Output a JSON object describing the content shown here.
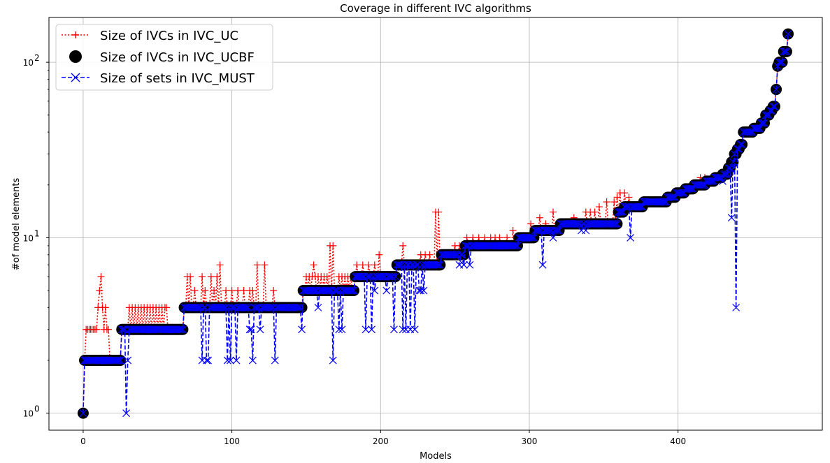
{
  "chart_data": {
    "type": "line",
    "title": "Coverage in different IVC algorithms",
    "xlabel": "Models",
    "ylabel": "#of model elements",
    "xlim": [
      -23,
      497
    ],
    "ylim": [
      0.8,
      180
    ],
    "yscale": "log",
    "grid": true,
    "legend_position": "top-left",
    "x_ticks": [
      0,
      100,
      200,
      300,
      400
    ],
    "y_ticks": [
      {
        "value": 1,
        "base": "10",
        "exp": "0"
      },
      {
        "value": 10,
        "base": "10",
        "exp": "1"
      },
      {
        "value": 100,
        "base": "10",
        "exp": "2"
      }
    ],
    "n_models": 475,
    "ucbf_steps": [
      [
        0,
        0,
        1
      ],
      [
        1,
        25,
        2
      ],
      [
        26,
        67,
        3
      ],
      [
        68,
        147,
        4
      ],
      [
        148,
        182,
        5
      ],
      [
        183,
        210,
        6
      ],
      [
        211,
        240,
        7
      ],
      [
        241,
        256,
        8
      ],
      [
        257,
        292,
        9
      ],
      [
        293,
        303,
        10
      ],
      [
        304,
        320,
        11
      ],
      [
        321,
        359,
        12
      ],
      [
        360,
        363,
        14
      ],
      [
        364,
        376,
        15
      ],
      [
        377,
        392,
        16
      ],
      [
        393,
        398,
        17
      ],
      [
        399,
        404,
        18
      ],
      [
        405,
        410,
        19
      ],
      [
        411,
        418,
        20
      ],
      [
        419,
        424,
        21
      ],
      [
        425,
        429,
        22
      ],
      [
        430,
        433,
        23
      ],
      [
        434,
        435,
        25
      ],
      [
        436,
        437,
        27
      ],
      [
        438,
        439,
        30
      ],
      [
        440,
        441,
        32
      ],
      [
        442,
        443,
        34
      ],
      [
        444,
        450,
        40
      ],
      [
        451,
        455,
        42
      ],
      [
        456,
        458,
        45
      ],
      [
        459,
        461,
        50
      ],
      [
        462,
        463,
        53
      ],
      [
        464,
        465,
        56
      ],
      [
        466,
        466,
        70
      ],
      [
        467,
        467,
        95
      ],
      [
        468,
        470,
        100
      ],
      [
        471,
        473,
        115
      ],
      [
        474,
        474,
        145
      ]
    ],
    "uc_overrides": [
      [
        2,
        3
      ],
      [
        3,
        3
      ],
      [
        4,
        3
      ],
      [
        5,
        3
      ],
      [
        6,
        3
      ],
      [
        7,
        3
      ],
      [
        8,
        3
      ],
      [
        9,
        3
      ],
      [
        10,
        4
      ],
      [
        11,
        5
      ],
      [
        12,
        6
      ],
      [
        13,
        4
      ],
      [
        14,
        3
      ],
      [
        15,
        4
      ],
      [
        16,
        3
      ],
      [
        17,
        3
      ],
      [
        31,
        4
      ],
      [
        33,
        4
      ],
      [
        35,
        4
      ],
      [
        37,
        4
      ],
      [
        39,
        4
      ],
      [
        41,
        4
      ],
      [
        43,
        4
      ],
      [
        45,
        4
      ],
      [
        47,
        4
      ],
      [
        49,
        4
      ],
      [
        51,
        4
      ],
      [
        53,
        4
      ],
      [
        55,
        4
      ],
      [
        56,
        4
      ],
      [
        70,
        6
      ],
      [
        72,
        6
      ],
      [
        75,
        5
      ],
      [
        80,
        6
      ],
      [
        82,
        5
      ],
      [
        86,
        6
      ],
      [
        88,
        5
      ],
      [
        90,
        6
      ],
      [
        92,
        7
      ],
      [
        96,
        5
      ],
      [
        100,
        5
      ],
      [
        104,
        5
      ],
      [
        108,
        5
      ],
      [
        112,
        5
      ],
      [
        114,
        5
      ],
      [
        117,
        7
      ],
      [
        122,
        7
      ],
      [
        128,
        5
      ],
      [
        150,
        6
      ],
      [
        152,
        6
      ],
      [
        154,
        6
      ],
      [
        155,
        7
      ],
      [
        156,
        6
      ],
      [
        158,
        6
      ],
      [
        160,
        6
      ],
      [
        162,
        6
      ],
      [
        164,
        6
      ],
      [
        166,
        9
      ],
      [
        168,
        9
      ],
      [
        172,
        6
      ],
      [
        174,
        6
      ],
      [
        176,
        6
      ],
      [
        178,
        6
      ],
      [
        180,
        6
      ],
      [
        184,
        7
      ],
      [
        188,
        7
      ],
      [
        192,
        7
      ],
      [
        196,
        7
      ],
      [
        199,
        8
      ],
      [
        215,
        9
      ],
      [
        227,
        8
      ],
      [
        230,
        8
      ],
      [
        233,
        8
      ],
      [
        237,
        14
      ],
      [
        239,
        14
      ],
      [
        250,
        9
      ],
      [
        253,
        9
      ],
      [
        258,
        10
      ],
      [
        262,
        10
      ],
      [
        266,
        10
      ],
      [
        270,
        10
      ],
      [
        274,
        10
      ],
      [
        277,
        10
      ],
      [
        280,
        10
      ],
      [
        285,
        10
      ],
      [
        289,
        11
      ],
      [
        301,
        12
      ],
      [
        307,
        13
      ],
      [
        311,
        12
      ],
      [
        316,
        14
      ],
      [
        330,
        13
      ],
      [
        338,
        14
      ],
      [
        341,
        14
      ],
      [
        344,
        14
      ],
      [
        347,
        15
      ],
      [
        352,
        16
      ],
      [
        357,
        16
      ],
      [
        359,
        17
      ],
      [
        361,
        18
      ],
      [
        364,
        18
      ],
      [
        367,
        17
      ],
      [
        376,
        16
      ],
      [
        415,
        22
      ],
      [
        418,
        22
      ]
    ],
    "must_overrides": [
      [
        29,
        1
      ],
      [
        30,
        2
      ],
      [
        80,
        2
      ],
      [
        83,
        2
      ],
      [
        84,
        2
      ],
      [
        97,
        2
      ],
      [
        99,
        2
      ],
      [
        103,
        2
      ],
      [
        112,
        3
      ],
      [
        113,
        3
      ],
      [
        114,
        2
      ],
      [
        119,
        3
      ],
      [
        129,
        2
      ],
      [
        147,
        3
      ],
      [
        158,
        4
      ],
      [
        168,
        2
      ],
      [
        172,
        3
      ],
      [
        174,
        3
      ],
      [
        176,
        5
      ],
      [
        190,
        3
      ],
      [
        194,
        3
      ],
      [
        196,
        5
      ],
      [
        204,
        5
      ],
      [
        209,
        3
      ],
      [
        215,
        3
      ],
      [
        217,
        3
      ],
      [
        220,
        3
      ],
      [
        223,
        3
      ],
      [
        226,
        5
      ],
      [
        227,
        5
      ],
      [
        229,
        5
      ],
      [
        253,
        7
      ],
      [
        256,
        7
      ],
      [
        260,
        7
      ],
      [
        309,
        7
      ],
      [
        316,
        10
      ],
      [
        335,
        11
      ],
      [
        338,
        11
      ],
      [
        368,
        10
      ],
      [
        430,
        21
      ],
      [
        436,
        13
      ],
      [
        439,
        4
      ]
    ],
    "series": [
      {
        "name": "Size of IVCs in IVC_UC",
        "color": "#ff0000",
        "style": "dotted",
        "marker": "plus"
      },
      {
        "name": "Size of IVCs in IVC_UCBF",
        "color": "#000000",
        "style": "none",
        "marker": "circle"
      },
      {
        "name": "Size of sets in IVC_MUST",
        "color": "#0000ff",
        "style": "dashed",
        "marker": "x"
      }
    ]
  }
}
